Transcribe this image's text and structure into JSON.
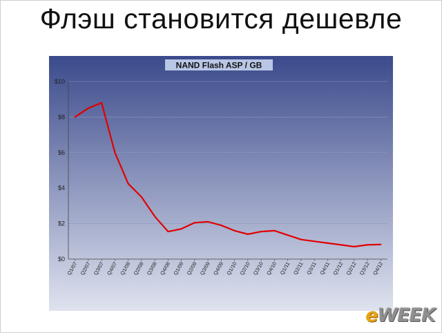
{
  "slide": {
    "title": "Флэш становится дешевле",
    "brand_prefix": "e",
    "brand_suffix": "WEEK"
  },
  "colors": {
    "line": "#e00000",
    "plot_top": "#3b4a8c",
    "plot_bottom": "#dfe3ef",
    "chart_title_bg": "#b9c7e6"
  },
  "chart_data": {
    "type": "line",
    "title": "NAND Flash ASP / GB",
    "xlabel": "",
    "ylabel": "",
    "categories": [
      "Q1/07",
      "Q2/07",
      "Q3/07",
      "Q4/07",
      "Q1/08",
      "Q2/08",
      "Q3/08",
      "Q4/08",
      "Q1/09",
      "Q2/09",
      "Q3/09",
      "Q4/09",
      "Q1/10",
      "Q2/10",
      "Q3/10",
      "Q4/10",
      "Q1/11",
      "Q2/11",
      "Q3/11",
      "Q4/11",
      "Q1/12",
      "Q2/12",
      "Q3/12",
      "Q4/12"
    ],
    "series": [
      {
        "values": [
          8.0,
          8.5,
          8.8,
          6.0,
          4.25,
          3.5,
          2.4,
          1.55,
          1.7,
          2.05,
          2.1,
          1.9,
          1.6,
          1.4,
          1.55,
          1.6,
          1.35,
          1.1,
          1.0,
          0.9,
          0.8,
          0.7,
          0.8,
          0.82
        ]
      }
    ],
    "ylim": [
      0,
      10
    ],
    "yticks": [
      0,
      2,
      4,
      6,
      8,
      10
    ],
    "ytick_labels": [
      "$0",
      "$2",
      "$4",
      "$6",
      "$8",
      "$10"
    ],
    "grid": true,
    "legend": "none"
  }
}
